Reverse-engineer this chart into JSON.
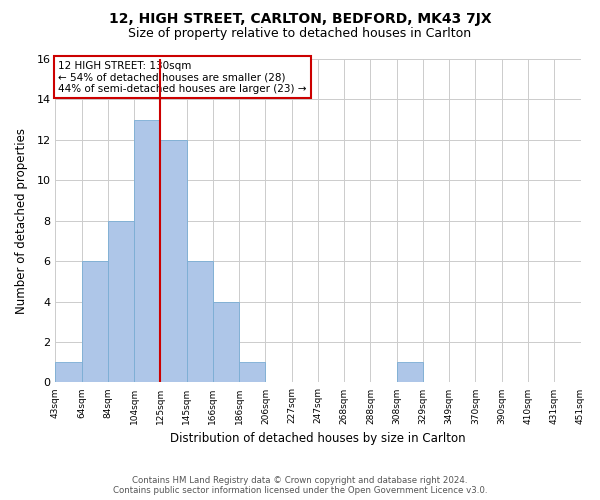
{
  "title": "12, HIGH STREET, CARLTON, BEDFORD, MK43 7JX",
  "subtitle": "Size of property relative to detached houses in Carlton",
  "xlabel": "Distribution of detached houses by size in Carlton",
  "ylabel": "Number of detached properties",
  "bin_edges": [
    "43sqm",
    "64sqm",
    "84sqm",
    "104sqm",
    "125sqm",
    "145sqm",
    "166sqm",
    "186sqm",
    "206sqm",
    "227sqm",
    "247sqm",
    "268sqm",
    "288sqm",
    "308sqm",
    "329sqm",
    "349sqm",
    "370sqm",
    "390sqm",
    "410sqm",
    "431sqm",
    "451sqm"
  ],
  "bar_values": [
    1,
    6,
    8,
    13,
    12,
    6,
    4,
    1,
    0,
    0,
    0,
    0,
    0,
    1,
    0,
    0,
    0,
    0,
    0,
    0
  ],
  "bar_color": "#aec6e8",
  "bar_edge_color": "#7aadd4",
  "red_line_after_index": 4,
  "ylim": [
    0,
    16
  ],
  "yticks": [
    0,
    2,
    4,
    6,
    8,
    10,
    12,
    14,
    16
  ],
  "annotation_title": "12 HIGH STREET: 130sqm",
  "annotation_line1": "← 54% of detached houses are smaller (28)",
  "annotation_line2": "44% of semi-detached houses are larger (23) →",
  "footer_line1": "Contains HM Land Registry data © Crown copyright and database right 2024.",
  "footer_line2": "Contains public sector information licensed under the Open Government Licence v3.0.",
  "bg_color": "#ffffff",
  "grid_color": "#cccccc",
  "annotation_box_facecolor": "#ffffff",
  "annotation_box_edgecolor": "#cc0000",
  "red_line_color": "#cc0000"
}
